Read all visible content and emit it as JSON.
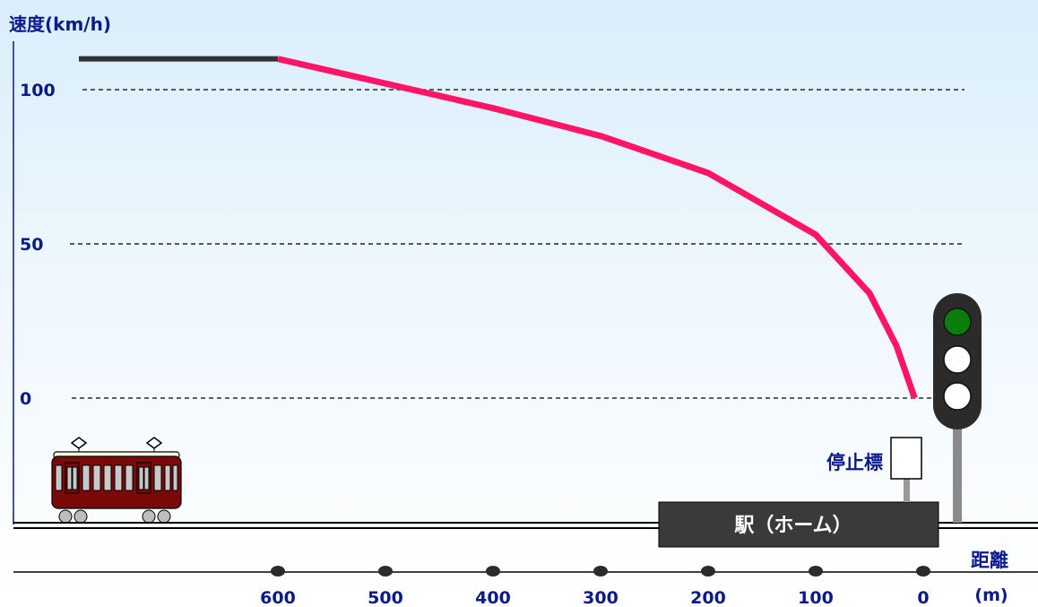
{
  "chart_data": {
    "type": "line",
    "ylabel": "速度(km/h)",
    "xlabel": "距離",
    "xunit": "(m)",
    "yticks": [
      {
        "value": 100,
        "label": "100"
      },
      {
        "value": 50,
        "label": "50"
      },
      {
        "value": 0,
        "label": "0"
      }
    ],
    "xticks": [
      {
        "value": 600,
        "label": "600"
      },
      {
        "value": 500,
        "label": "500"
      },
      {
        "value": 400,
        "label": "400"
      },
      {
        "value": 300,
        "label": "300"
      },
      {
        "value": 200,
        "label": "200"
      },
      {
        "value": 100,
        "label": "100"
      },
      {
        "value": 0,
        "label": "0"
      }
    ],
    "series": [
      {
        "color": "#333333",
        "points": [
          [
            785,
            110
          ],
          [
            600,
            110
          ]
        ]
      },
      {
        "color": "#ff1466",
        "points": [
          [
            600,
            110
          ],
          [
            500,
            102
          ],
          [
            400,
            94
          ],
          [
            300,
            85
          ],
          [
            200,
            73
          ],
          [
            100,
            53
          ],
          [
            50,
            34
          ],
          [
            25,
            17
          ],
          [
            8,
            0
          ]
        ]
      }
    ],
    "xlim": [
      0,
      600
    ],
    "ylim": [
      0,
      100
    ],
    "grid": true
  },
  "labels": {
    "station": "駅（ホーム）",
    "stop_sign": "停止標"
  },
  "signal": {
    "lamps": [
      {
        "name": "top",
        "color": "#0a7d0a"
      },
      {
        "name": "middle",
        "color": "#ffffff"
      },
      {
        "name": "bottom",
        "color": "#ffffff"
      }
    ]
  },
  "colors": {
    "accent": "#ff1466",
    "text": "#0a1a8c",
    "train_body": "#7a0a0a"
  }
}
